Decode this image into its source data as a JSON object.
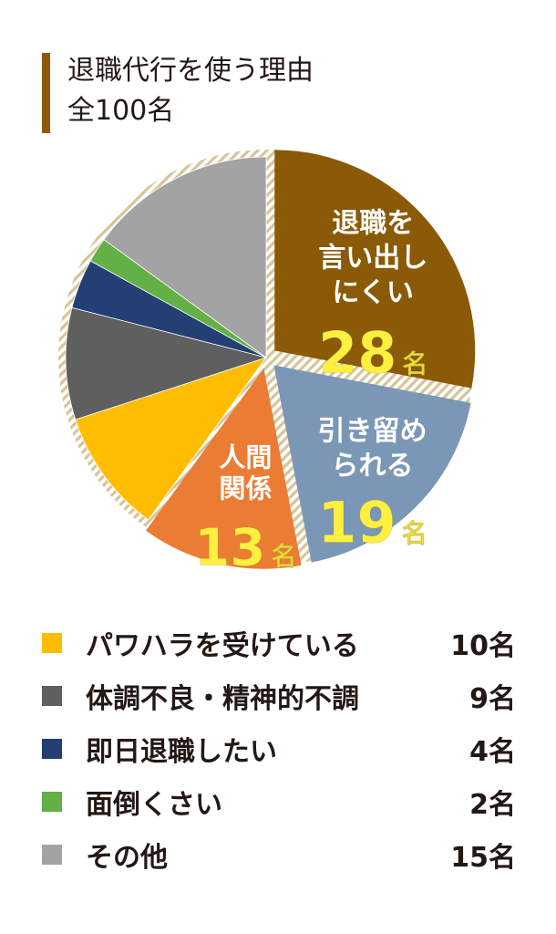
{
  "header": {
    "title": "退職代行を使う理由",
    "subtitle": "全100名"
  },
  "colors": {
    "accent_bar": "#8a5a06",
    "hatch": "#d6c49a"
  },
  "chart_data": {
    "type": "pie",
    "title": "退職代行を使う理由",
    "subtitle": "全100名",
    "unit": "名",
    "total": 100,
    "slices": [
      {
        "key": "hard_to_say",
        "label_lines": [
          "退職を",
          "言い出し",
          "にくい"
        ],
        "value": 28,
        "value_text": "28",
        "color": "#8a5a06",
        "exploded": true,
        "labeled": true
      },
      {
        "key": "held_back",
        "label_lines": [
          "引き留め",
          "られる"
        ],
        "value": 19,
        "value_text": "19",
        "color": "#7b97b6",
        "exploded": true,
        "labeled": true
      },
      {
        "key": "relationships",
        "label_lines": [
          "人間",
          "関係"
        ],
        "value": 13,
        "value_text": "13",
        "color": "#ea7c34",
        "exploded": true,
        "labeled": true
      },
      {
        "key": "power_harassment",
        "label": "パワハラを受けている",
        "value": 10,
        "value_text": "10名",
        "color": "#ffbd00",
        "exploded": false,
        "labeled": false
      },
      {
        "key": "health",
        "label": "体調不良・精神的不調",
        "value": 9,
        "value_text": "9名",
        "color": "#5f5f5f",
        "exploded": false,
        "labeled": false
      },
      {
        "key": "same_day",
        "label": "即日退職したい",
        "value": 4,
        "value_text": "4名",
        "color": "#233f74",
        "exploded": false,
        "labeled": false
      },
      {
        "key": "bothersome",
        "label": "面倒くさい",
        "value": 2,
        "value_text": "2名",
        "color": "#62b046",
        "exploded": false,
        "labeled": false
      },
      {
        "key": "other",
        "label": "その他",
        "value": 15,
        "value_text": "15名",
        "color": "#a3a3a3",
        "exploded": false,
        "labeled": false
      }
    ]
  },
  "legend": [
    {
      "label": "パワハラを受けている",
      "value": "10名",
      "color": "#ffbd00"
    },
    {
      "label": "体調不良・精神的不調",
      "value": "9名",
      "color": "#5f5f5f"
    },
    {
      "label": "即日退職したい",
      "value": "4名",
      "color": "#233f74"
    },
    {
      "label": "面倒くさい",
      "value": "2名",
      "color": "#62b046"
    },
    {
      "label": "その他",
      "value": "15名",
      "color": "#a3a3a3"
    }
  ]
}
